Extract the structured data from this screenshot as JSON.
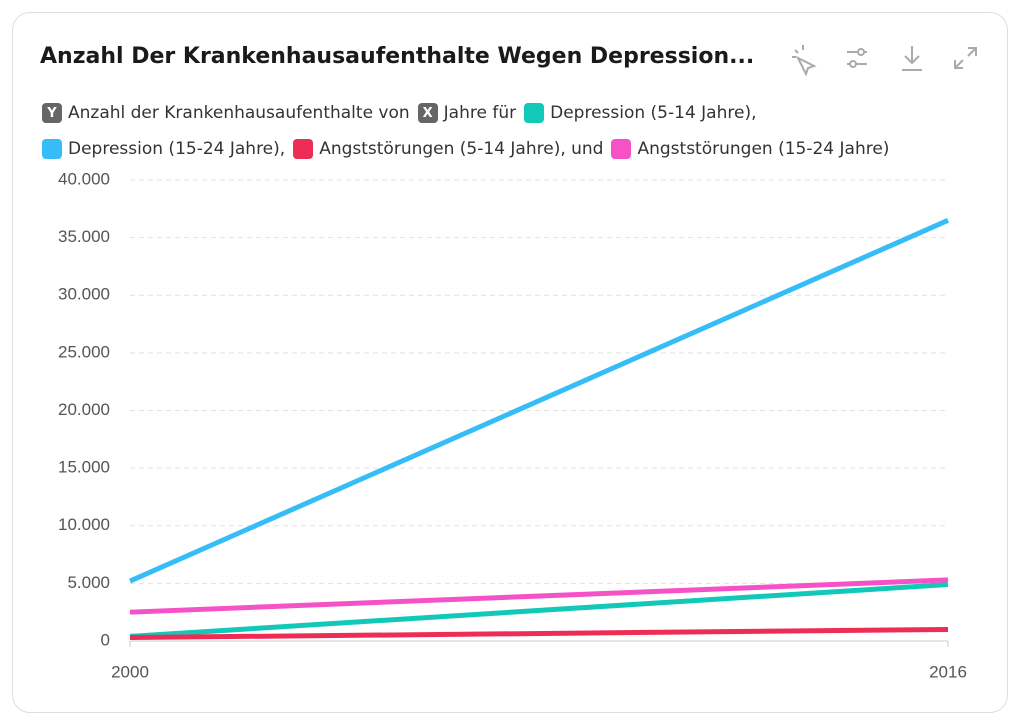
{
  "chart_data": {
    "type": "line",
    "title": "Anzahl Der Krankenhausaufenthalte Wegen Depression...",
    "y_badge": "Y",
    "y_legend": "Anzahl der Krankenhausaufenthalte von",
    "x_badge": "X",
    "x_legend": "Jahre für",
    "x": [
      2000,
      2016
    ],
    "series": [
      {
        "name": "Depression (5-14 Jahre),",
        "color": "#12c8b8",
        "values": [
          400,
          4900
        ]
      },
      {
        "name": "Depression (15-24 Jahre),",
        "color": "#36bdf7",
        "values": [
          5200,
          36500
        ]
      },
      {
        "name": "Angststörungen (5-14 Jahre), und",
        "color": "#ee2d56",
        "values": [
          300,
          1000
        ]
      },
      {
        "name": "Angststörungen (15-24 Jahre)",
        "color": "#f652c8",
        "values": [
          2500,
          5300
        ]
      }
    ],
    "xlim": [
      2000,
      2016
    ],
    "xticks": [
      2000,
      2016
    ],
    "ylim": [
      0,
      40000
    ],
    "yticks": [
      0,
      {
        "value": 5000,
        "label": "5.000"
      },
      {
        "value": 10000,
        "label": "10.000"
      },
      {
        "value": 15000,
        "label": "15.000"
      },
      {
        "value": 20000,
        "label": "20.000"
      },
      {
        "value": 25000,
        "label": "25.000"
      },
      {
        "value": 30000,
        "label": "30.000"
      },
      {
        "value": 35000,
        "label": "35.000"
      },
      {
        "value": 40000,
        "label": "40.000"
      }
    ],
    "grid": true
  }
}
